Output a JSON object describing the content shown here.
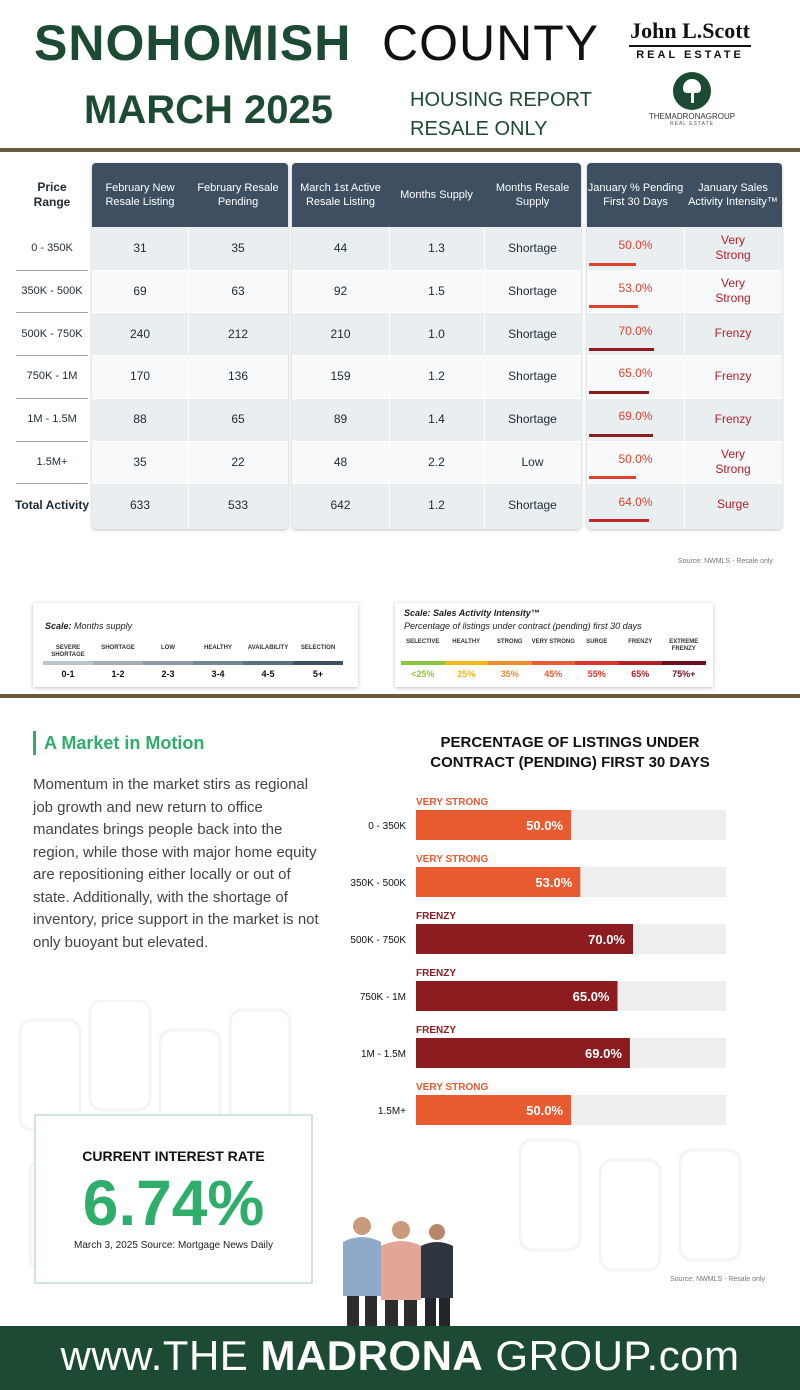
{
  "header": {
    "county_bold": "SNOHOMISH",
    "county_light": "COUNTY",
    "month": "MARCH 2025",
    "report_line1": "HOUSING REPORT",
    "report_line2": "RESALE ONLY",
    "jls_logo_name": "John L.Scott",
    "jls_logo_sub": "REAL ESTATE",
    "madrona_logo_name": "THEMADRONAGROUP",
    "madrona_logo_sub": "REAL ESTATE"
  },
  "table": {
    "range_header": "Price Range",
    "col_headers": [
      "February New Resale Listing",
      "February Resale Pending",
      "March 1st Active Resale Listing",
      "Months Supply",
      "Months Resale Supply",
      "January % Pending First 30 Days",
      "January Sales Activity Intensity™"
    ],
    "rows": [
      {
        "range": "0 - 350K",
        "new_listing": "31",
        "pending": "35",
        "active": "44",
        "months_supply": "1.3",
        "supply_label": "Shortage",
        "pct_pending": "50.0%",
        "pct_value": 50,
        "intensity": "Very Strong"
      },
      {
        "range": "350K - 500K",
        "new_listing": "69",
        "pending": "63",
        "active": "92",
        "months_supply": "1.5",
        "supply_label": "Shortage",
        "pct_pending": "53.0%",
        "pct_value": 53,
        "intensity": "Very Strong"
      },
      {
        "range": "500K - 750K",
        "new_listing": "240",
        "pending": "212",
        "active": "210",
        "months_supply": "1.0",
        "supply_label": "Shortage",
        "pct_pending": "70.0%",
        "pct_value": 70,
        "intensity": "Frenzy"
      },
      {
        "range": "750K - 1M",
        "new_listing": "170",
        "pending": "136",
        "active": "159",
        "months_supply": "1.2",
        "supply_label": "Shortage",
        "pct_pending": "65.0%",
        "pct_value": 65,
        "intensity": "Frenzy"
      },
      {
        "range": "1M - 1.5M",
        "new_listing": "88",
        "pending": "65",
        "active": "89",
        "months_supply": "1.4",
        "supply_label": "Shortage",
        "pct_pending": "69.0%",
        "pct_value": 69,
        "intensity": "Frenzy"
      },
      {
        "range": "1.5M+",
        "new_listing": "35",
        "pending": "22",
        "active": "48",
        "months_supply": "2.2",
        "supply_label": "Low",
        "pct_pending": "50.0%",
        "pct_value": 50,
        "intensity": "Very Strong"
      },
      {
        "range": "Total Activity",
        "new_listing": "633",
        "pending": "533",
        "active": "642",
        "months_supply": "1.2",
        "supply_label": "Shortage",
        "pct_pending": "64.0%",
        "pct_value": 64,
        "intensity": "Surge"
      }
    ],
    "source": "Source: NWMLS - Resale only"
  },
  "scale_supply": {
    "title_bold": "Scale:",
    "title_rest": "Months supply",
    "items": [
      {
        "label": "SEVERE SHORTAGE",
        "value": "0-1",
        "color": "#b9c4cc"
      },
      {
        "label": "SHORTAGE",
        "value": "1-2",
        "color": "#a2afb9"
      },
      {
        "label": "LOW",
        "value": "2-3",
        "color": "#8b9aa6"
      },
      {
        "label": "HEALTHY",
        "value": "3-4",
        "color": "#748593"
      },
      {
        "label": "AVAILABILITY",
        "value": "4-5",
        "color": "#5d7080"
      },
      {
        "label": "SELECTION",
        "value": "5+",
        "color": "#3e4f62"
      }
    ]
  },
  "scale_intensity": {
    "title_bold": "Scale: Sales Activity Intensity™",
    "subtitle": "Percentage of listings under contract (pending) first 30 days",
    "items": [
      {
        "label": "SELECTIVE",
        "value": "<25%",
        "color": "#8cc63f"
      },
      {
        "label": "HEALTHY",
        "value": "25%",
        "color": "#f2b51a"
      },
      {
        "label": "STRONG",
        "value": "35%",
        "color": "#f08a2c"
      },
      {
        "label": "VERY STRONG",
        "value": "45%",
        "color": "#e85a30"
      },
      {
        "label": "SURGE",
        "value": "55%",
        "color": "#d8352b"
      },
      {
        "label": "FRENZY",
        "value": "65%",
        "color": "#b3202a"
      },
      {
        "label": "EXTREME FRENZY",
        "value": "75%+",
        "color": "#6e0f1f"
      }
    ]
  },
  "article": {
    "title": "A Market in Motion",
    "body": "Momentum in the market stirs as regional job growth and new return to office mandates brings people back into the region, while those with major home equity are repositioning either locally or out of state. Additionally, with the shortage of inventory, price support in the market is not only buoyant but elevated."
  },
  "interest": {
    "title": "CURRENT INTEREST RATE",
    "value": "6.74%",
    "source": "March 3, 2025 Source: Mortgage News Daily"
  },
  "chart_data": {
    "type": "bar",
    "orientation": "horizontal",
    "title": "PERCENTAGE OF LISTINGS UNDER CONTRACT (PENDING) FIRST 30 DAYS",
    "categories": [
      "0 - 350K",
      "350K - 500K",
      "500K - 750K",
      "750K - 1M",
      "1M - 1.5M",
      "1.5M+"
    ],
    "values": [
      50.0,
      53.0,
      70.0,
      65.0,
      69.0,
      50.0
    ],
    "value_labels": [
      "50.0%",
      "53.0%",
      "70.0%",
      "65.0%",
      "69.0%",
      "50.0%"
    ],
    "category_tags": [
      "VERY STRONG",
      "VERY STRONG",
      "FRENZY",
      "FRENZY",
      "FRENZY",
      "VERY STRONG"
    ],
    "xlim": [
      0,
      100
    ],
    "colors": {
      "very_strong": "#e85a30",
      "frenzy": "#8c1c20",
      "track": "#eeeeee"
    },
    "source": "Source: NWMLS - Resale only"
  },
  "footer": {
    "prefix": "www.THE ",
    "bold": "MADRONA",
    "suffix": " GROUP.com"
  }
}
